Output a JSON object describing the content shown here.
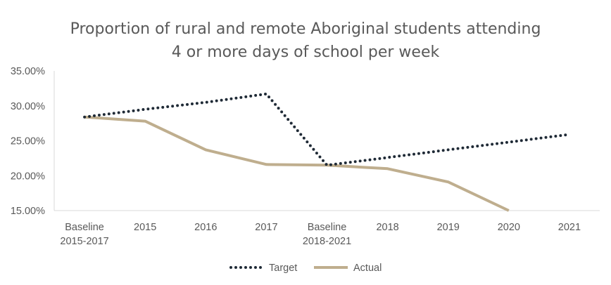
{
  "chart_data": {
    "type": "line",
    "title_lines": [
      "Proportion of rural and remote Aboriginal students attending",
      "4 or more days of school per week"
    ],
    "categories": [
      [
        "Baseline",
        "2015-2017"
      ],
      [
        "2015"
      ],
      [
        "2016"
      ],
      [
        "2017"
      ],
      [
        "Baseline",
        "2018-2021"
      ],
      [
        "2018"
      ],
      [
        "2019"
      ],
      [
        "2020"
      ],
      [
        "2021"
      ]
    ],
    "y_ticks": [
      "15.00%",
      "20.00%",
      "25.00%",
      "30.00%",
      "35.00%"
    ],
    "ylim": [
      15,
      35
    ],
    "grid": false,
    "legend_position": "bottom",
    "series": [
      {
        "name": "Target",
        "style": "dotted",
        "color": "#1f2a36",
        "values": [
          28.4,
          29.5,
          30.5,
          31.7,
          21.5,
          22.6,
          23.7,
          24.8,
          25.9
        ]
      },
      {
        "name": "Actual",
        "style": "solid",
        "color": "#bfae8e",
        "values": [
          28.4,
          27.8,
          23.7,
          21.6,
          21.5,
          21.0,
          19.1,
          15.0,
          null
        ]
      }
    ]
  }
}
